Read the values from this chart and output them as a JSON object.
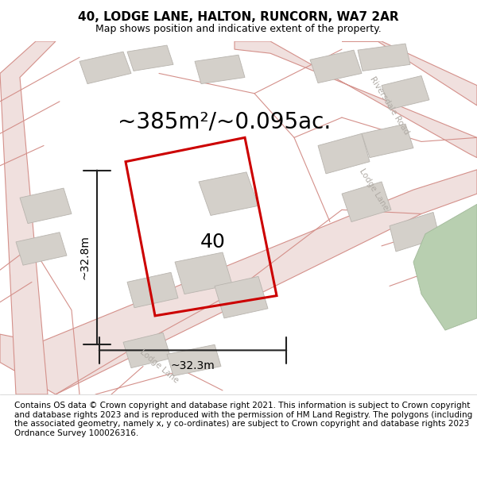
{
  "title": "40, LODGE LANE, HALTON, RUNCORN, WA7 2AR",
  "subtitle": "Map shows position and indicative extent of the property.",
  "area_text": "~385m²/~0.095ac.",
  "width_label": "~32.3m",
  "height_label": "~32.8m",
  "number_label": "40",
  "footer": "Contains OS data © Crown copyright and database right 2021. This information is subject to Crown copyright and database rights 2023 and is reproduced with the permission of HM Land Registry. The polygons (including the associated geometry, namely x, y co-ordinates) are subject to Crown copyright and database rights 2023 Ordnance Survey 100026316.",
  "map_bg": "#f2efe9",
  "road_line_color": "#d4908a",
  "road_fill": "#f0e0de",
  "building_fill": "#d4d0ca",
  "building_edge": "#b8b4ae",
  "property_color": "#cc0000",
  "dim_line_color": "#222222",
  "green_fill": "#b8cfb0",
  "green_edge": "#a0b898",
  "road_label_color": "#b0aba5",
  "title_fontsize": 11,
  "subtitle_fontsize": 9,
  "area_fontsize": 20,
  "dim_fontsize": 10,
  "num_fontsize": 18,
  "footer_fontsize": 7.5
}
